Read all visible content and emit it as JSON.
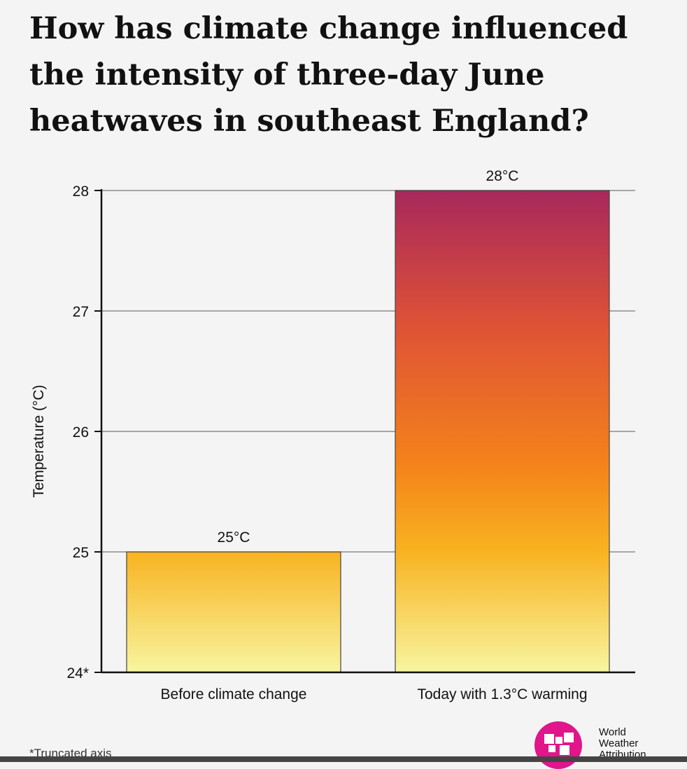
{
  "title": "How has climate change influenced the intensity of three-day June heatwaves in southeast England?",
  "footnote": "*Truncated axis",
  "logo": {
    "line1": "World",
    "line2": "Weather",
    "line3": "Attribution"
  },
  "colors": {
    "gradient_top": "#a8285c",
    "gradient_mid": "#f4831a",
    "gradient_bottom": "#f8f5a0",
    "axis": "#111111",
    "grid": "#777777"
  },
  "chart_data": {
    "type": "bar",
    "categories": [
      "Before climate change",
      "Today with 1.3°C warming"
    ],
    "values": [
      25,
      28
    ],
    "data_labels": [
      "25°C",
      "28°C"
    ],
    "ylabel": "Temperature (°C)",
    "yticks": [
      "24*",
      "25",
      "26",
      "27",
      "28"
    ],
    "ytick_values": [
      24,
      25,
      26,
      27,
      28
    ],
    "ylim": [
      24,
      28
    ],
    "grid": true
  }
}
